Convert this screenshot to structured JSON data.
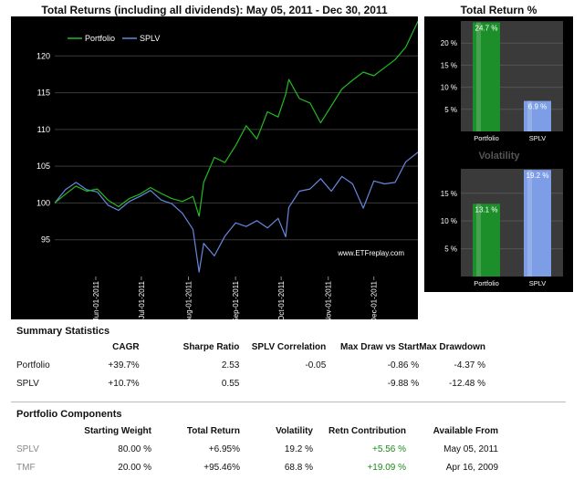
{
  "main_chart": {
    "title": "Total Returns (including all dividends): May 05, 2011 - Dec 30, 2011",
    "watermark": "www.ETFreplay.com"
  },
  "side_charts": {
    "total_return_title": "Total Return %",
    "volatility_title": "Volatility"
  },
  "chart_data": [
    {
      "type": "line",
      "title": "Total Returns (including all dividends): May 05, 2011 - Dec 30, 2011",
      "x_ticks": [
        "Jun-01-2011",
        "Jul-01-2011",
        "Aug-01-2011",
        "Sep-01-2011",
        "Oct-01-2011",
        "Nov-01-2011",
        "Dec-01-2011"
      ],
      "y_ticks": [
        95,
        100,
        105,
        110,
        115,
        120
      ],
      "xlim": [
        "2011-05-05",
        "2011-12-30"
      ],
      "ylim": [
        90,
        125
      ],
      "legend": "top-left",
      "grid": true,
      "series": [
        {
          "name": "Portfolio",
          "color": "#22bb22",
          "points": [
            [
              "2011-05-05",
              100
            ],
            [
              "2011-05-12",
              101.2
            ],
            [
              "2011-05-19",
              102.3
            ],
            [
              "2011-05-26",
              101.6
            ],
            [
              "2011-06-02",
              101.9
            ],
            [
              "2011-06-09",
              100.4
            ],
            [
              "2011-06-16",
              99.5
            ],
            [
              "2011-06-23",
              100.6
            ],
            [
              "2011-06-30",
              101.2
            ],
            [
              "2011-07-07",
              102.1
            ],
            [
              "2011-07-14",
              101.3
            ],
            [
              "2011-07-21",
              100.6
            ],
            [
              "2011-07-28",
              100.2
            ],
            [
              "2011-08-04",
              100.9
            ],
            [
              "2011-08-08",
              98.2
            ],
            [
              "2011-08-11",
              102.8
            ],
            [
              "2011-08-18",
              106.2
            ],
            [
              "2011-08-25",
              105.5
            ],
            [
              "2011-09-01",
              107.8
            ],
            [
              "2011-09-08",
              110.5
            ],
            [
              "2011-09-15",
              108.7
            ],
            [
              "2011-09-22",
              112.4
            ],
            [
              "2011-09-29",
              111.7
            ],
            [
              "2011-10-04",
              114.8
            ],
            [
              "2011-10-06",
              116.8
            ],
            [
              "2011-10-13",
              114.2
            ],
            [
              "2011-10-20",
              113.6
            ],
            [
              "2011-10-27",
              110.9
            ],
            [
              "2011-11-03",
              113.2
            ],
            [
              "2011-11-10",
              115.5
            ],
            [
              "2011-11-17",
              116.7
            ],
            [
              "2011-11-24",
              117.8
            ],
            [
              "2011-12-01",
              117.3
            ],
            [
              "2011-12-08",
              118.4
            ],
            [
              "2011-12-15",
              119.5
            ],
            [
              "2011-12-22",
              121.2
            ],
            [
              "2011-12-30",
              124.7
            ]
          ]
        },
        {
          "name": "SPLV",
          "color": "#6688dd",
          "points": [
            [
              "2011-05-05",
              100
            ],
            [
              "2011-05-12",
              101.8
            ],
            [
              "2011-05-19",
              102.8
            ],
            [
              "2011-05-26",
              101.8
            ],
            [
              "2011-06-02",
              101.5
            ],
            [
              "2011-06-09",
              99.7
            ],
            [
              "2011-06-16",
              99.0
            ],
            [
              "2011-06-23",
              100.2
            ],
            [
              "2011-06-30",
              100.9
            ],
            [
              "2011-07-07",
              101.7
            ],
            [
              "2011-07-14",
              100.4
            ],
            [
              "2011-07-21",
              99.9
            ],
            [
              "2011-07-28",
              98.6
            ],
            [
              "2011-08-04",
              96.4
            ],
            [
              "2011-08-08",
              90.6
            ],
            [
              "2011-08-11",
              94.5
            ],
            [
              "2011-08-18",
              92.8
            ],
            [
              "2011-08-25",
              95.5
            ],
            [
              "2011-09-01",
              97.3
            ],
            [
              "2011-09-08",
              96.8
            ],
            [
              "2011-09-15",
              97.6
            ],
            [
              "2011-09-22",
              96.6
            ],
            [
              "2011-09-29",
              97.9
            ],
            [
              "2011-10-04",
              95.4
            ],
            [
              "2011-10-06",
              99.4
            ],
            [
              "2011-10-13",
              101.6
            ],
            [
              "2011-10-20",
              101.9
            ],
            [
              "2011-10-27",
              103.3
            ],
            [
              "2011-11-03",
              101.6
            ],
            [
              "2011-11-10",
              103.6
            ],
            [
              "2011-11-17",
              102.6
            ],
            [
              "2011-11-24",
              99.3
            ],
            [
              "2011-12-01",
              103.0
            ],
            [
              "2011-12-08",
              102.6
            ],
            [
              "2011-12-15",
              102.8
            ],
            [
              "2011-12-22",
              105.6
            ],
            [
              "2011-12-30",
              106.9
            ]
          ]
        }
      ]
    },
    {
      "type": "bar",
      "title": "Total Return %",
      "categories": [
        "Portfolio",
        "SPLV"
      ],
      "values": [
        24.7,
        6.9
      ],
      "value_labels": [
        "24.7 %",
        "6.9 %"
      ],
      "y_ticks": [
        "5 %",
        "10 %",
        "15 %",
        "20 %"
      ],
      "ylim": [
        0,
        25
      ],
      "colors": [
        "#1d8f2a",
        "#7d9ee6"
      ]
    },
    {
      "type": "bar",
      "title": "Volatility",
      "categories": [
        "Portfolio",
        "SPLV"
      ],
      "values": [
        13.1,
        19.2
      ],
      "value_labels": [
        "13.1 %",
        "19.2 %"
      ],
      "y_ticks": [
        "5 %",
        "10 %",
        "15 %"
      ],
      "ylim": [
        0,
        19.4
      ],
      "colors": [
        "#1d8f2a",
        "#7d9ee6"
      ]
    }
  ],
  "summary": {
    "title": "Summary Statistics",
    "columns": [
      "",
      "CAGR",
      "Sharpe Ratio",
      "SPLV Correlation",
      "Max Draw vs Start",
      "Max Drawdown"
    ],
    "rows": [
      [
        "Portfolio",
        "+39.7%",
        "2.53",
        "-0.05",
        "-0.86 %",
        "-4.37 %"
      ],
      [
        "SPLV",
        "+10.7%",
        "0.55",
        "",
        "-9.88 %",
        "-12.48 %"
      ]
    ]
  },
  "components": {
    "title": "Portfolio Components",
    "columns": [
      "",
      "Starting Weight",
      "Total Return",
      "Volatility",
      "Retn Contribution",
      "Available From"
    ],
    "rows": [
      [
        "SPLV",
        "80.00 %",
        "+6.95%",
        "19.2 %",
        "+5.56 %",
        "May 05, 2011"
      ],
      [
        "TMF",
        "20.00 %",
        "+95.46%",
        "68.8 %",
        "+19.09 %",
        "Apr 16, 2009"
      ]
    ]
  }
}
